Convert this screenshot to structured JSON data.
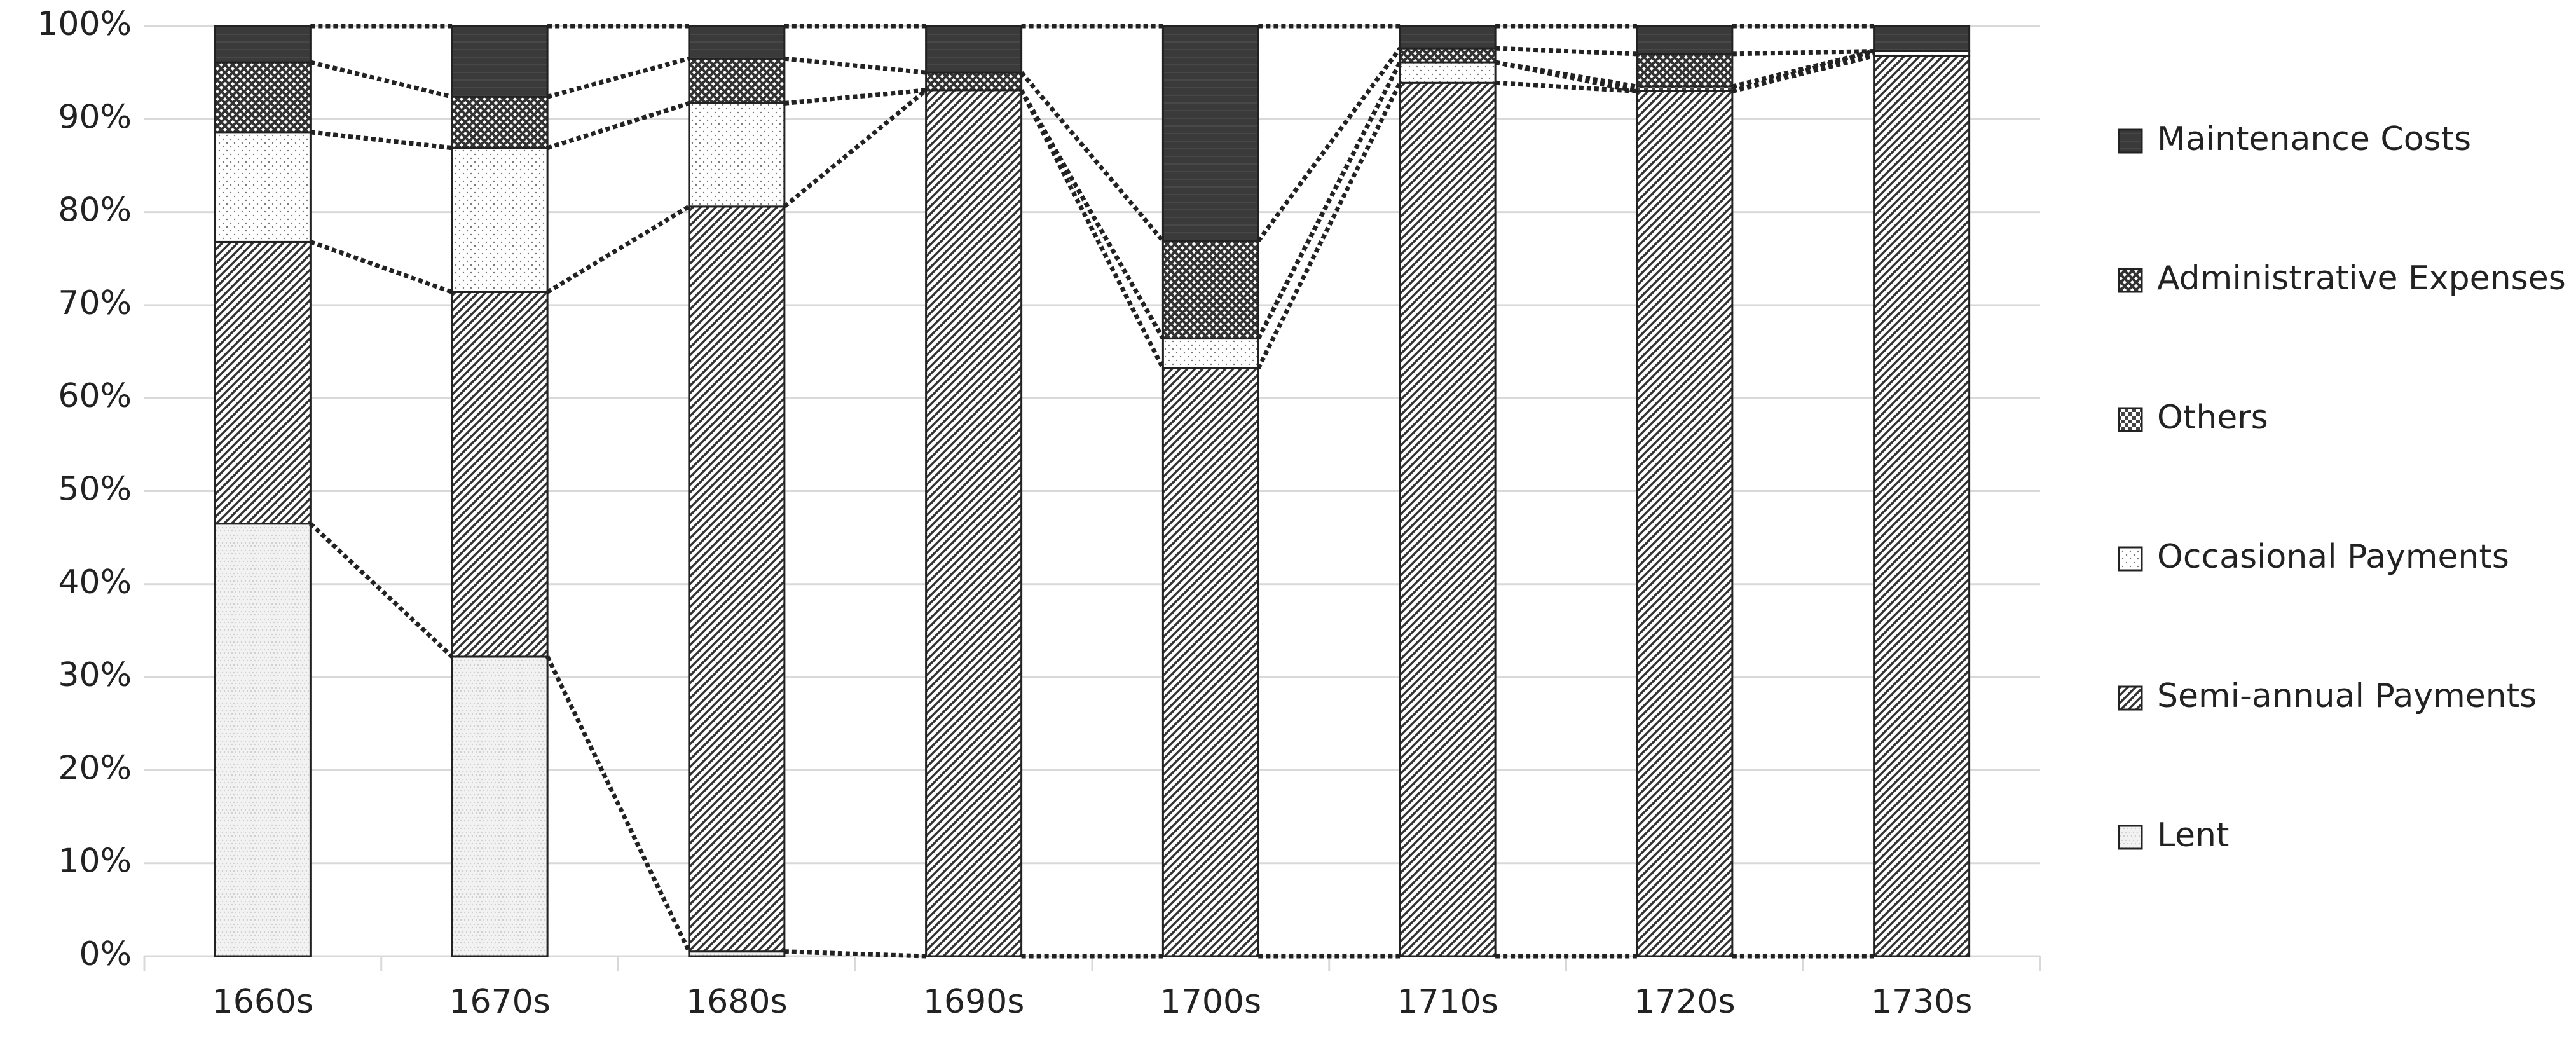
{
  "chart_data": {
    "type": "stacked_bar",
    "categories": [
      "1660s",
      "1670s",
      "1680s",
      "1690s",
      "1700s",
      "1710s",
      "1720s",
      "1730s"
    ],
    "series": [
      {
        "name": "Lent",
        "color": "#cfcfcf",
        "pattern": "fine-dots",
        "values": [
          46.5,
          32.2,
          0.5,
          0,
          0,
          0,
          0,
          0
        ]
      },
      {
        "name": "Semi-annual Payments",
        "color": "#333333",
        "pattern": "diagonal",
        "values": [
          30.3,
          39.2,
          80.1,
          93.1,
          63.2,
          93.9,
          93.0,
          96.8
        ]
      },
      {
        "name": "Occasional Payments",
        "color": "#777777",
        "pattern": "sparse-dots",
        "values": [
          11.8,
          15.5,
          11.1,
          0,
          3.2,
          2.2,
          0,
          0.5
        ]
      },
      {
        "name": "Others",
        "color": "#444444",
        "pattern": "checker",
        "values": [
          0,
          0,
          0,
          0,
          0,
          0,
          0.5,
          0
        ]
      },
      {
        "name": "Administrative Expenses",
        "color": "#333333",
        "pattern": "crosshatch",
        "values": [
          7.5,
          5.5,
          4.8,
          1.9,
          10.5,
          1.5,
          3.5,
          0
        ]
      },
      {
        "name": "Maintenance Costs",
        "color": "#3a3a3a",
        "pattern": "solid",
        "values": [
          3.9,
          7.6,
          3.5,
          5.0,
          23.1,
          2.4,
          3.0,
          2.7
        ]
      }
    ],
    "ylim": [
      0,
      100
    ],
    "yticks": [
      {
        "value": 0,
        "label": "0%"
      },
      {
        "value": 10,
        "label": "10%"
      },
      {
        "value": 20,
        "label": "20%"
      },
      {
        "value": 30,
        "label": "30%"
      },
      {
        "value": 40,
        "label": "40%"
      },
      {
        "value": 50,
        "label": "50%"
      },
      {
        "value": 60,
        "label": "60%"
      },
      {
        "value": 70,
        "label": "70%"
      },
      {
        "value": 80,
        "label": "80%"
      },
      {
        "value": 90,
        "label": "90%"
      },
      {
        "value": 100,
        "label": "100%"
      }
    ],
    "grid": true,
    "legend": "right",
    "series_lines": true
  }
}
